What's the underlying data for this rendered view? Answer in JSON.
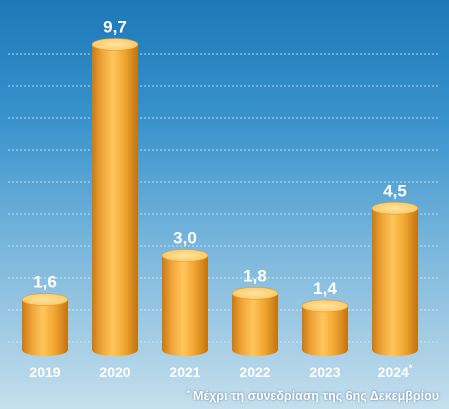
{
  "chart_data": {
    "type": "bar",
    "categories": [
      "2019",
      "2020",
      "2021",
      "2022",
      "2023",
      "2024*"
    ],
    "values": [
      1.6,
      9.7,
      3.0,
      1.8,
      1.4,
      4.5
    ],
    "value_labels": [
      "1,6",
      "9,7",
      "3,0",
      "1,8",
      "1,4",
      "4,5"
    ],
    "ylim": [
      0,
      10
    ],
    "grid": true,
    "title": "",
    "xlabel": "",
    "ylabel": ""
  },
  "footnote": {
    "marker": "*",
    "text": "Μέχρι τη συνεδρίαση της 6ης Δεκεμβρίου"
  },
  "colors": {
    "bar_body": "#f2a733",
    "bar_top": "#ffd479",
    "label": "#ffffff",
    "grid": "#d8ecf8"
  }
}
